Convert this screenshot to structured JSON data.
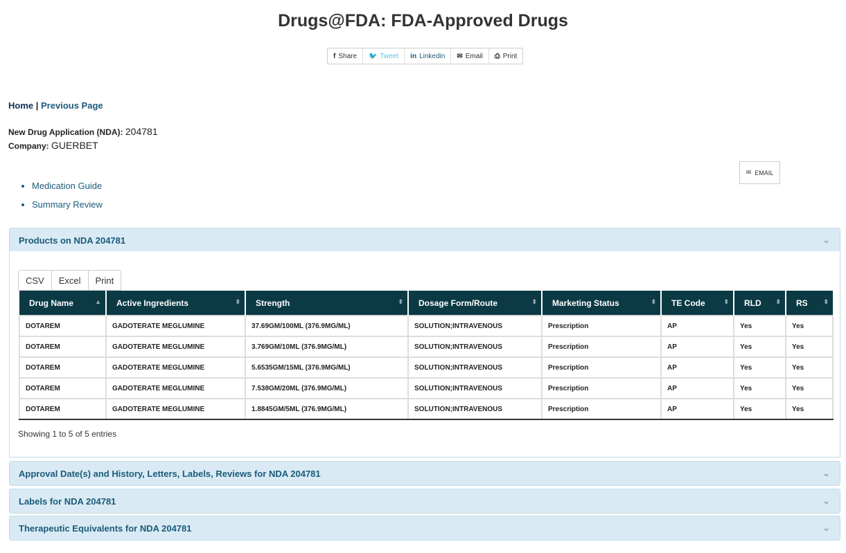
{
  "title": "Drugs@FDA: FDA-Approved Drugs",
  "share": [
    {
      "icon": "facebook-icon",
      "label": "Share",
      "color": "#333"
    },
    {
      "icon": "twitter-icon",
      "label": "Tweet",
      "color": "#5bc0de"
    },
    {
      "icon": "linkedin-icon",
      "label": "Linkedin",
      "color": "#1a5a7a"
    },
    {
      "icon": "envelope-icon",
      "label": "Email",
      "color": "#333"
    },
    {
      "icon": "printer-icon",
      "label": "Print",
      "color": "#333"
    }
  ],
  "breadcrumb": {
    "home": "Home",
    "sep": "|",
    "previous": "Previous Page"
  },
  "nda": {
    "label": "New Drug Application (NDA):",
    "value": "204781"
  },
  "company": {
    "label": "Company:",
    "value": "GUERBET"
  },
  "email_button": "EMAIL",
  "links": [
    "Medication Guide",
    "Summary Review"
  ],
  "products": {
    "title": "Products on NDA 204781",
    "export_buttons": [
      "CSV",
      "Excel",
      "Print"
    ],
    "columns": [
      "Drug Name",
      "Active Ingredients",
      "Strength",
      "Dosage Form/Route",
      "Marketing Status",
      "TE Code",
      "RLD",
      "RS"
    ],
    "rows": [
      [
        "DOTAREM",
        "GADOTERATE MEGLUMINE",
        "37.69GM/100ML (376.9MG/ML)",
        "SOLUTION;INTRAVENOUS",
        "Prescription",
        "AP",
        "Yes",
        "Yes"
      ],
      [
        "DOTAREM",
        "GADOTERATE MEGLUMINE",
        "3.769GM/10ML (376.9MG/ML)",
        "SOLUTION;INTRAVENOUS",
        "Prescription",
        "AP",
        "Yes",
        "Yes"
      ],
      [
        "DOTAREM",
        "GADOTERATE MEGLUMINE",
        "5.6535GM/15ML (376.9MG/ML)",
        "SOLUTION;INTRAVENOUS",
        "Prescription",
        "AP",
        "Yes",
        "Yes"
      ],
      [
        "DOTAREM",
        "GADOTERATE MEGLUMINE",
        "7.538GM/20ML (376.9MG/ML)",
        "SOLUTION;INTRAVENOUS",
        "Prescription",
        "AP",
        "Yes",
        "Yes"
      ],
      [
        "DOTAREM",
        "GADOTERATE MEGLUMINE",
        "1.8845GM/5ML (376.9MG/ML)",
        "SOLUTION;INTRAVENOUS",
        "Prescription",
        "AP",
        "Yes",
        "Yes"
      ]
    ],
    "showing": "Showing 1 to 5 of 5 entries"
  },
  "sections": [
    "Approval Date(s) and History, Letters, Labels, Reviews for NDA 204781",
    "Labels for NDA 204781",
    "Therapeutic Equivalents for NDA 204781"
  ]
}
